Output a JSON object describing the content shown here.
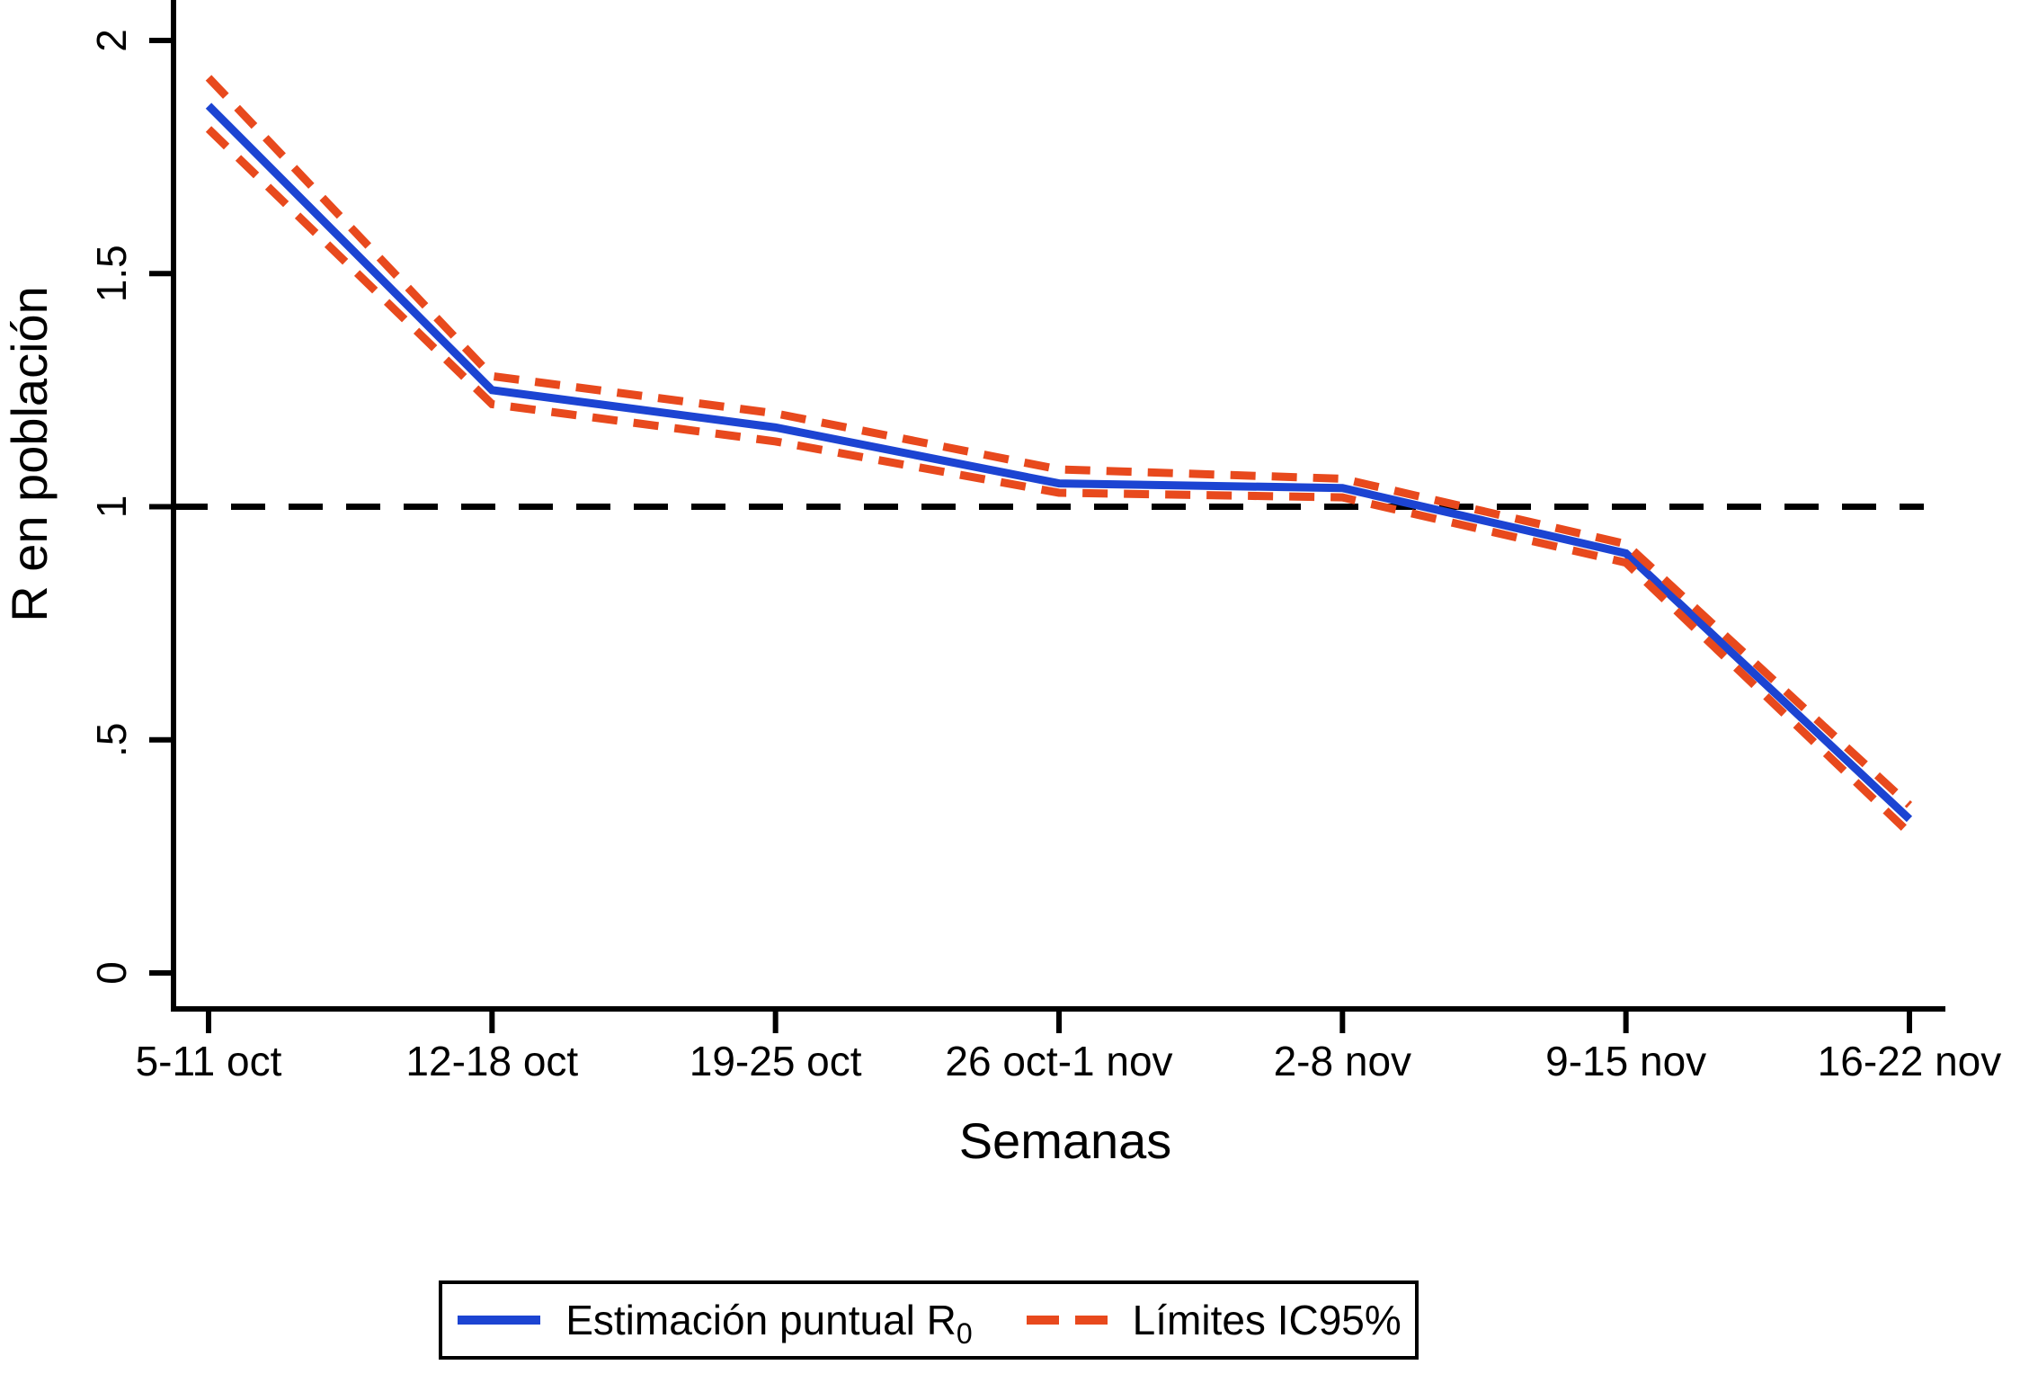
{
  "chart_data": {
    "type": "line",
    "title": "",
    "xlabel": "Semanas",
    "ylabel": "R en población",
    "categories": [
      "5-11 oct",
      "12-18 oct",
      "19-25 oct",
      "26 oct-1 nov",
      "2-8 nov",
      "9-15 nov",
      "16-22 nov"
    ],
    "y_ticks": [
      {
        "value": 0,
        "label": "0"
      },
      {
        "value": 0.5,
        "label": ".5"
      },
      {
        "value": 1,
        "label": "1"
      },
      {
        "value": 1.5,
        "label": "1.5"
      },
      {
        "value": 2,
        "label": "2"
      }
    ],
    "ylim": [
      0,
      2.08
    ],
    "grid": false,
    "legend_position": "bottom-center",
    "reference_line": {
      "value": 1,
      "style": "dashed",
      "color": "#000000"
    },
    "series": [
      {
        "name": "Estimación puntual R0",
        "role": "estimate",
        "style": "solid",
        "color": "#1c44d2",
        "values": [
          1.86,
          1.25,
          1.17,
          1.05,
          1.04,
          0.9,
          0.33
        ]
      },
      {
        "name": "Límite superior IC95%",
        "role": "ci-upper",
        "style": "dashed",
        "color": "#e8491d",
        "values": [
          1.92,
          1.28,
          1.2,
          1.08,
          1.06,
          0.92,
          0.36
        ]
      },
      {
        "name": "Límite inferior IC95%",
        "role": "ci-lower",
        "style": "dashed",
        "color": "#e8491d",
        "values": [
          1.81,
          1.22,
          1.14,
          1.03,
          1.02,
          0.88,
          0.3
        ]
      }
    ],
    "legend": {
      "entries": [
        {
          "label_main": "Estimación puntual R",
          "label_sub": "0",
          "style": "solid",
          "color": "#1c44d2"
        },
        {
          "label_main": "Límites IC95%",
          "label_sub": "",
          "style": "dashed",
          "color": "#e8491d"
        }
      ]
    }
  },
  "colors": {
    "estimate": "#1c44d2",
    "ci": "#e8491d",
    "reference": "#000000",
    "axis": "#000000",
    "background": "#ffffff"
  }
}
